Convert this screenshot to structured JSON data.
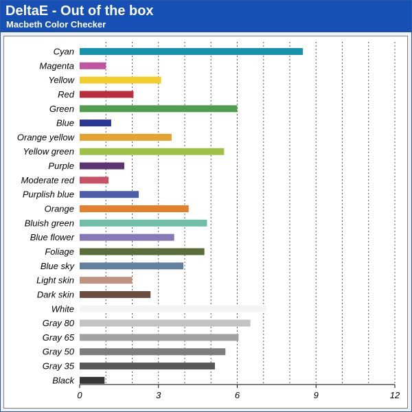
{
  "header": {
    "title": "DeltaE - Out of the box",
    "subtitle": "Macbeth Color Checker"
  },
  "chart_data": {
    "type": "bar",
    "orientation": "horizontal",
    "title": "DeltaE - Out of the box",
    "subtitle": "Macbeth Color Checker",
    "xlim": [
      0,
      12
    ],
    "x_ticks": [
      0,
      3,
      6,
      9,
      12
    ],
    "grid": "vertical dotted lines at every 1 unit",
    "categories": [
      "Cyan",
      "Magenta",
      "Yellow",
      "Red",
      "Green",
      "Blue",
      "Orange yellow",
      "Yellow green",
      "Purple",
      "Moderate red",
      "Purplish blue",
      "Orange",
      "Bluish green",
      "Blue flower",
      "Foliage",
      "Blue sky",
      "Light skin",
      "Dark skin",
      "White",
      "Gray 80",
      "Gray 65",
      "Gray 50",
      "Gray 35",
      "Black"
    ],
    "values": [
      8.5,
      1.0,
      3.1,
      2.05,
      6.0,
      1.2,
      3.5,
      5.5,
      1.7,
      1.1,
      2.25,
      4.15,
      4.85,
      3.6,
      4.75,
      3.95,
      2.0,
      2.7,
      7.1,
      6.5,
      6.05,
      5.55,
      5.15,
      0.95
    ],
    "colors": [
      "#1593ad",
      "#c054a0",
      "#f2cd2c",
      "#bb2f3c",
      "#4f9e4e",
      "#2c3693",
      "#e5a230",
      "#9cc348",
      "#5b3471",
      "#c95164",
      "#4b5caa",
      "#e4802d",
      "#6fbfa6",
      "#8579b8",
      "#586d38",
      "#62809d",
      "#c09280",
      "#6e4d41",
      "#f4f4f4",
      "#c3c3c3",
      "#a2a2a2",
      "#7d7d7d",
      "#585858",
      "#363636"
    ]
  }
}
